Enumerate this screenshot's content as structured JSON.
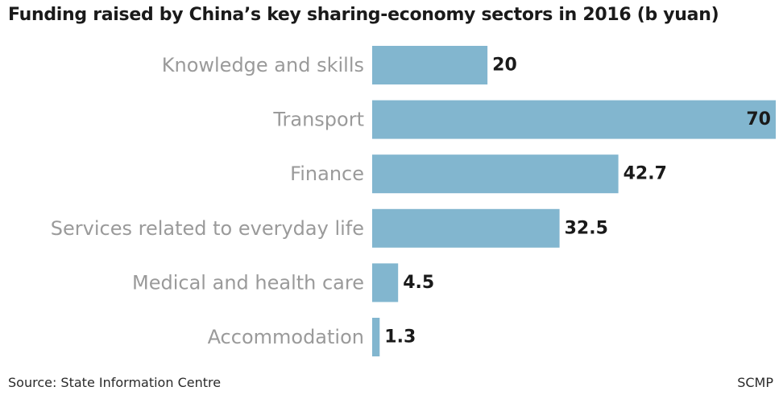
{
  "chart_data": {
    "type": "bar",
    "orientation": "horizontal",
    "title": "Funding raised by China’s key sharing-economy sectors in 2016 (b yuan)",
    "categories": [
      "Knowledge and skills",
      "Transport",
      "Finance",
      "Services related to everyday life",
      "Medical and health care",
      "Accommodation"
    ],
    "values": [
      20,
      70,
      42.7,
      32.5,
      4.5,
      1.3
    ],
    "value_labels": [
      "20",
      "70",
      "42.7",
      "32.5",
      "4.5",
      "1.3"
    ],
    "xlim": [
      0,
      70
    ],
    "grid": false,
    "legend": "none",
    "bar_color": "#82b6cf"
  },
  "footer": {
    "source": "Source: State Information Centre",
    "credit": "SCMP"
  }
}
